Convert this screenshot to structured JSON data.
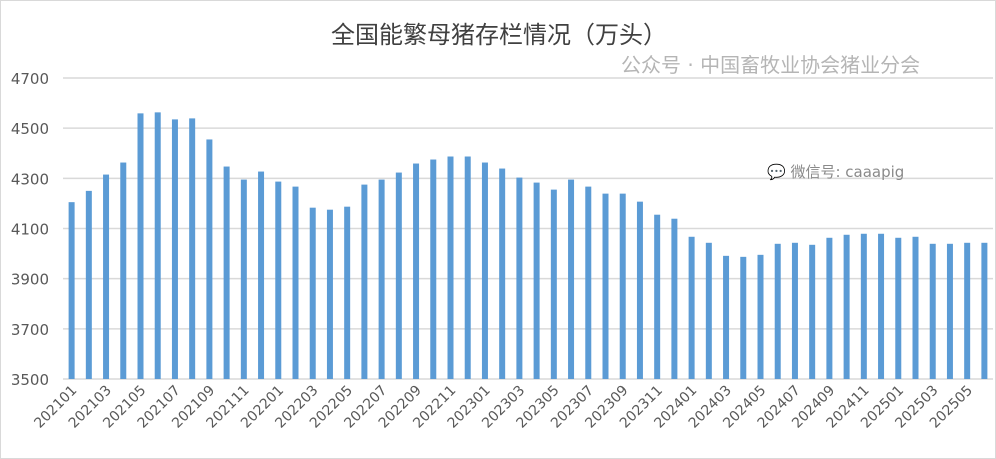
{
  "chart_data": {
    "type": "bar",
    "title": "全国能繁母猪存栏情况（万头）",
    "xlabel": "",
    "ylabel": "",
    "ylim": [
      3500,
      4700
    ],
    "yticks": [
      3500,
      3700,
      3900,
      4100,
      4300,
      4500,
      4700
    ],
    "grid": true,
    "legend": "none",
    "bar_color": "#5b9bd5",
    "categories": [
      "202101",
      "202102",
      "202103",
      "202104",
      "202105",
      "202106",
      "202107",
      "202108",
      "202109",
      "202110",
      "202111",
      "202112",
      "202201",
      "202202",
      "202203",
      "202204",
      "202205",
      "202206",
      "202207",
      "202208",
      "202209",
      "202210",
      "202211",
      "202212",
      "202301",
      "202302",
      "202303",
      "202304",
      "202305",
      "202306",
      "202307",
      "202308",
      "202309",
      "202310",
      "202311",
      "202312",
      "202401",
      "202402",
      "202403",
      "202404",
      "202405",
      "202406",
      "202407",
      "202408",
      "202409",
      "202410",
      "202411",
      "202412",
      "202501",
      "202502",
      "202503",
      "202504",
      "202505",
      "202506"
    ],
    "xtick_labels": [
      "202101",
      "202103",
      "202105",
      "202107",
      "202109",
      "202111",
      "202201",
      "202203",
      "202205",
      "202207",
      "202209",
      "202211",
      "202301",
      "202303",
      "202305",
      "202307",
      "202309",
      "202311",
      "202401",
      "202403",
      "202405",
      "202407",
      "202409",
      "202411",
      "202501",
      "202503",
      "202505"
    ],
    "values": [
      4205,
      4250,
      4315,
      4363,
      4559,
      4563,
      4535,
      4539,
      4455,
      4347,
      4295,
      4327,
      4287,
      4267,
      4183,
      4175,
      4187,
      4275,
      4295,
      4323,
      4359,
      4375,
      4387,
      4387,
      4363,
      4339,
      4303,
      4283,
      4255,
      4295,
      4267,
      4239,
      4239,
      4207,
      4155,
      4139,
      4067,
      4043,
      3991,
      3987,
      3995,
      4039,
      4043,
      4035,
      4063,
      4075,
      4079,
      4079,
      4063,
      4067,
      4039,
      4039,
      4043,
      4043
    ]
  },
  "watermarks": {
    "wechat_id": "微信号: caaapig",
    "account": "公众号 · 中国畜牧业协会猪业分会"
  }
}
